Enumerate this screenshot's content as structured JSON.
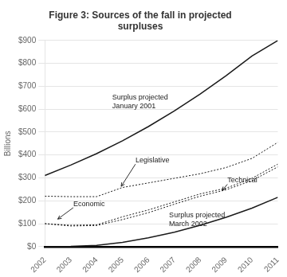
{
  "chart_data": {
    "type": "line",
    "title": "Figure 3: Sources of the fall in projected\nsurpluses",
    "ylabel": "Billions",
    "x": [
      2002,
      2003,
      2004,
      2005,
      2006,
      2007,
      2008,
      2009,
      2010,
      2011
    ],
    "color": "#1a1a1a",
    "series": [
      {
        "values": [
          310,
          356,
          406,
          462,
          524,
          592,
          666,
          746,
          832,
          900
        ],
        "line_style": "solid"
      },
      {
        "values": [
          0,
          1,
          5,
          18,
          38,
          63,
          93,
          128,
          168,
          215
        ],
        "line_style": "solid"
      },
      {
        "values": [
          220,
          218,
          218,
          258,
          278,
          298,
          318,
          345,
          385,
          455
        ],
        "line_style": "dotted"
      },
      {
        "values": [
          100,
          93,
          95,
          130,
          160,
          195,
          230,
          255,
          298,
          360
        ],
        "line_style": "dotted"
      },
      {
        "values": [
          100,
          90,
          92,
          118,
          148,
          185,
          220,
          248,
          288,
          348
        ],
        "line_style": "dotted"
      }
    ],
    "xlim": [
      2002,
      2011
    ],
    "xticks": [
      2002,
      2003,
      2004,
      2005,
      2006,
      2007,
      2008,
      2009,
      2010,
      2011
    ],
    "ylim": [
      0,
      900
    ],
    "yticks": [
      {
        "value": 0,
        "label": "$0"
      },
      {
        "value": 100,
        "label": "$100"
      },
      {
        "value": 200,
        "label": "$200"
      },
      {
        "value": 300,
        "label": "$300"
      },
      {
        "value": 400,
        "label": "$400"
      },
      {
        "value": 500,
        "label": "$500"
      },
      {
        "value": 600,
        "label": "$600"
      },
      {
        "value": 700,
        "label": "$700"
      },
      {
        "value": 800,
        "label": "$800"
      },
      {
        "value": 900,
        "label": "$900"
      }
    ],
    "grid": true,
    "annotations": [
      {
        "text": "Legislative",
        "x": 2005.5,
        "y": 360,
        "arrow": [
          2004.95,
          263
        ]
      },
      {
        "text": "Technical",
        "x": 2009.05,
        "y": 272,
        "arrow": [
          2008.85,
          245
        ]
      },
      {
        "text": "Economic",
        "x": 2003.1,
        "y": 170,
        "arrow": [
          2002.5,
          120
        ]
      },
      {
        "text": "Surplus projected\nJanuary 2001",
        "x": 2004.6,
        "y": 630
      },
      {
        "text": "Surplus projected\nMarch 2002",
        "x": 2006.8,
        "y": 118
      }
    ]
  }
}
